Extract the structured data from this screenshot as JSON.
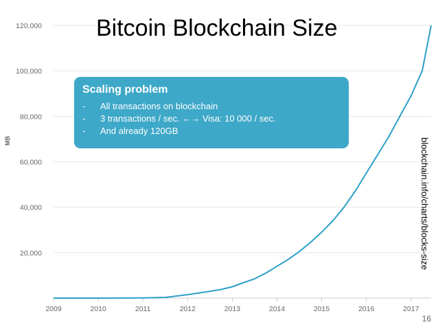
{
  "chart_data": {
    "type": "line",
    "title": "Bitcoin Blockchain Size",
    "ylabel": "MB",
    "xlabel": "",
    "x_ticks": [
      "2009",
      "2010",
      "2011",
      "2012",
      "2013",
      "2014",
      "2015",
      "2016",
      "2017"
    ],
    "y_ticks": [
      "20,000",
      "40,000",
      "60,000",
      "80,000",
      "100,000",
      "120,000"
    ],
    "xlim": [
      2009,
      2017.45
    ],
    "ylim": [
      0,
      120000
    ],
    "grid": true,
    "series": [
      {
        "x": [
          2009.0,
          2010.0,
          2011.0,
          2011.5,
          2012.0,
          2012.5,
          2012.75,
          2013.0,
          2013.25,
          2013.5,
          2013.75,
          2014.0,
          2014.25,
          2014.5,
          2014.75,
          2015.0,
          2015.25,
          2015.5,
          2015.75,
          2016.0,
          2016.25,
          2016.5,
          2016.75,
          2017.0,
          2017.25,
          2017.45
        ],
        "values": [
          0,
          0,
          100,
          300,
          1500,
          3000,
          3800,
          5000,
          6800,
          8500,
          11000,
          14000,
          17000,
          20500,
          24500,
          29000,
          34000,
          40000,
          47000,
          55000,
          63000,
          71000,
          80000,
          89000,
          100000,
          120000
        ]
      }
    ],
    "color": "#2b9fc8"
  },
  "callout": {
    "title": "Scaling problem",
    "bullets": [
      "All transactions on blockchain",
      "3 transactions / sec. ←→ Visa: 10 000 / sec.",
      "And already 120GB"
    ],
    "marker": "-",
    "background": "#3ea8c8"
  },
  "source": "blockchain.info/charts/blocks-size",
  "page_number": "16"
}
